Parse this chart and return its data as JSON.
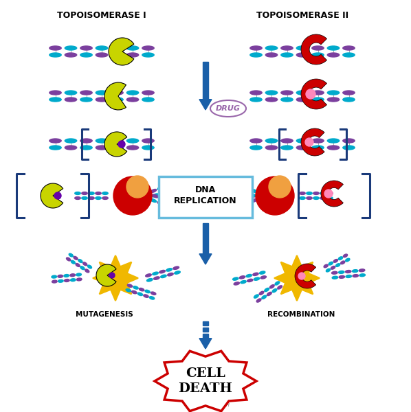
{
  "title_left": "TOPOISOMERASE I",
  "title_right": "TOPOISOMERASE II",
  "label_drug": "DRUG",
  "label_dna_rep": "DNA\nREPLICATION",
  "label_mutagenesis": "MUTAGENESIS",
  "label_recombination": "RECOMBINATION",
  "label_cell_death": "CELL\nDEATH",
  "bg_color": "#ffffff",
  "arrow_color": "#1a5fa8",
  "dna_color1": "#7b3f9e",
  "dna_color2": "#00aacc",
  "topo1_color": "#c8d400",
  "topo2_color": "#cc0000",
  "drug_color": "#cc0055",
  "cell_death_color": "#cc0000",
  "bracket_color": "#1a3a7a",
  "box_color": "#66bbdd",
  "explosion_color": "#f0b800"
}
